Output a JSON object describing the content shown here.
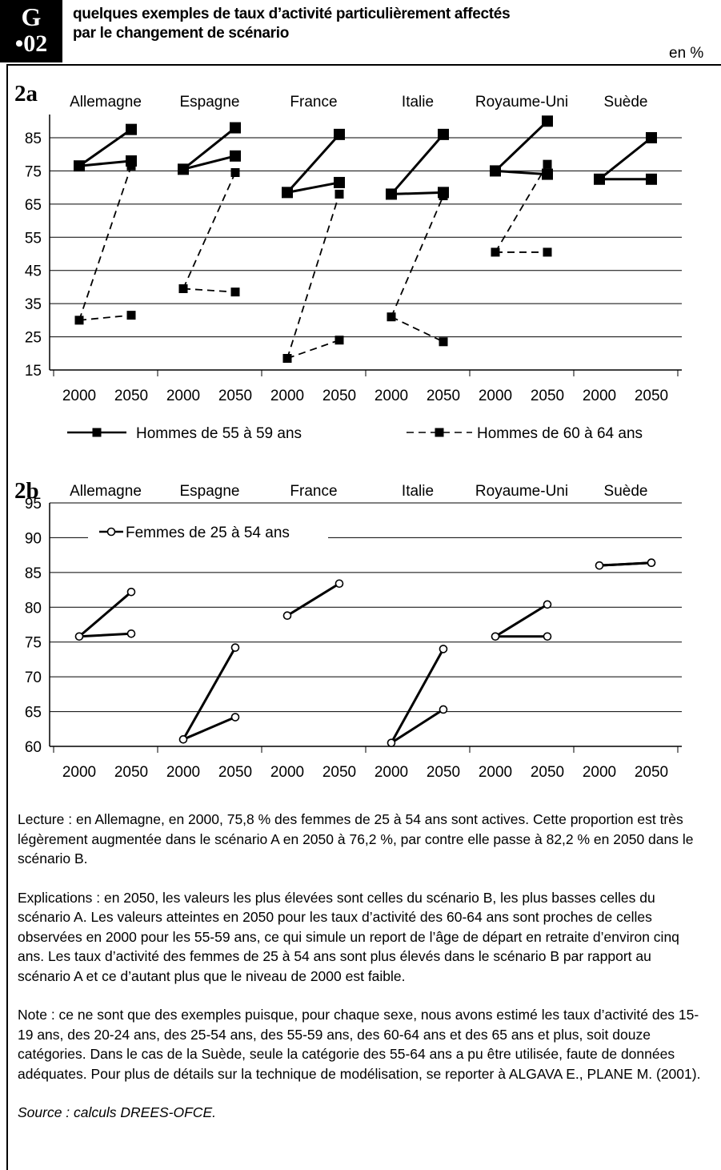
{
  "header": {
    "badge_line1": "G",
    "badge_line2": "•02",
    "title_line1": "quelques exemples de taux d’activité particulièrement affectés",
    "title_line2": "par le changement de scénario",
    "unit": "en %"
  },
  "chart_data": [
    {
      "panel_label": "2a",
      "type": "line",
      "countries": [
        "Allemagne",
        "Espagne",
        "France",
        "Italie",
        "Royaume-Uni",
        "Suède"
      ],
      "x_tick_labels": [
        "2000",
        "2050"
      ],
      "y_ticks": [
        15,
        25,
        35,
        45,
        55,
        65,
        75,
        85
      ],
      "ylim": [
        15,
        92
      ],
      "grid": true,
      "legend_position": "bottom",
      "legend": [
        "Hommes de 55 à 59 ans",
        "Hommes de 60 à 64 ans"
      ],
      "series": [
        {
          "name": "Hommes de 55 à 59 ans",
          "line": "solid",
          "marker": "large-square",
          "points_2000": [
            76.5,
            75.5,
            68.5,
            68.0,
            75.0,
            72.5
          ],
          "scenario_A_2050": [
            78.0,
            79.5,
            71.5,
            68.5,
            74.0,
            72.5
          ],
          "scenario_B_2050": [
            87.5,
            88.0,
            86.0,
            86.0,
            90.0,
            85.0
          ]
        },
        {
          "name": "Hommes de 60 à 64 ans",
          "line": "dashed",
          "marker": "small-square",
          "points_2000": [
            30.0,
            39.5,
            18.5,
            31.0,
            50.5,
            null
          ],
          "scenario_A_2050": [
            31.5,
            38.5,
            24.0,
            23.5,
            50.5,
            null
          ],
          "scenario_B_2050": [
            76.5,
            74.5,
            68.0,
            67.5,
            77.0,
            null
          ]
        }
      ]
    },
    {
      "panel_label": "2b",
      "type": "line",
      "countries": [
        "Allemagne",
        "Espagne",
        "France",
        "Italie",
        "Royaume-Uni",
        "Suède"
      ],
      "x_tick_labels": [
        "2000",
        "2050"
      ],
      "y_ticks": [
        60,
        65,
        70,
        75,
        80,
        85,
        90,
        95
      ],
      "ylim": [
        60,
        95
      ],
      "grid": true,
      "legend_position": "top-left",
      "legend": [
        "Femmes de 25 à 54 ans"
      ],
      "series": [
        {
          "name": "Femmes de 25 à 54 ans",
          "line": "solid",
          "marker": "open-circle",
          "points_2000": [
            75.8,
            61.0,
            78.8,
            60.5,
            75.8,
            86.0
          ],
          "scenario_A_2050": [
            76.2,
            64.2,
            null,
            65.3,
            75.8,
            86.4
          ],
          "scenario_B_2050": [
            82.2,
            74.2,
            83.4,
            74.0,
            80.4,
            86.4
          ]
        }
      ]
    }
  ],
  "notes": {
    "lecture": "Lecture : en Allemagne, en 2000, 75,8 % des femmes de 25 à 54 ans sont actives. Cette proportion est très légèrement augmentée dans le scénario A en 2050 à 76,2 %, par contre elle passe à 82,2 % en 2050 dans le scénario B.",
    "explications": "Explications : en 2050, les valeurs les plus élevées sont celles du scénario B, les plus basses celles du scénario A. Les valeurs atteintes en 2050 pour les taux d’activité des 60-64 ans sont proches de celles observées en 2000 pour les 55-59 ans, ce qui simule un report de l’âge de départ en retraite d’environ cinq ans. Les taux d’activité des femmes de 25 à 54 ans sont plus élevés dans le scénario B par rapport au scénario A et ce d’autant plus que le niveau de 2000 est faible.",
    "note": "Note : ce ne sont que des exemples puisque, pour chaque sexe, nous avons estimé les taux d’activité des 15-19 ans, des 20-24 ans, des 25-54 ans, des 55-59 ans, des 60-64 ans et des 65 ans et plus, soit douze catégories. Dans le cas de la Suède, seule la catégorie des 55-64 ans a pu être utilisée, faute de données adéquates. Pour plus de détails sur la technique de modélisation, se reporter à ALGAVA E., PLANE M. (2001).",
    "source": "Source : calculs DREES-OFCE."
  }
}
